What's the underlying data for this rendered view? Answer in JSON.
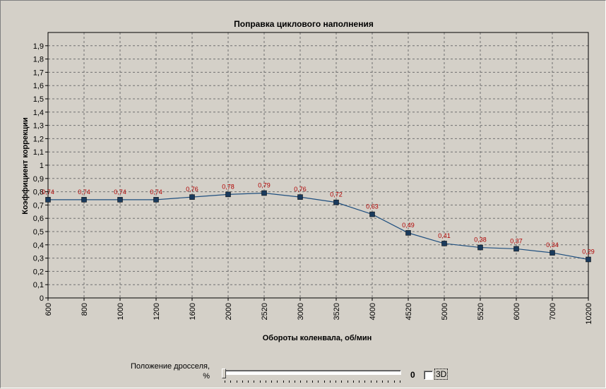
{
  "chart_data": {
    "type": "line",
    "title": "Поправка циклового наполнения",
    "xlabel": "Обороты коленвала, об/мин",
    "ylabel": "Коэффициент коррекции",
    "categories": [
      "600",
      "800",
      "1000",
      "1200",
      "1600",
      "2000",
      "2520",
      "3000",
      "3520",
      "4000",
      "4520",
      "5000",
      "5520",
      "6000",
      "7000",
      "10200"
    ],
    "values": [
      0.74,
      0.74,
      0.74,
      0.74,
      0.76,
      0.78,
      0.79,
      0.76,
      0.72,
      0.63,
      0.49,
      0.41,
      0.38,
      0.37,
      0.34,
      0.29
    ],
    "value_labels": [
      "0,74",
      "0,74",
      "0,74",
      "0,74",
      "0,76",
      "0,78",
      "0,79",
      "0,76",
      "0,72",
      "0,63",
      "0,49",
      "0,41",
      "0,38",
      "0,37",
      "0,34",
      "0,29"
    ],
    "ylim": [
      0,
      2
    ],
    "yticks": [
      "0",
      "0,1",
      "0,2",
      "0,3",
      "0,4",
      "0,5",
      "0,6",
      "0,7",
      "0,8",
      "0,9",
      "1",
      "1,1",
      "1,2",
      "1,3",
      "1,4",
      "1,5",
      "1,6",
      "1,7",
      "1,8",
      "1,9"
    ],
    "grid": true,
    "colors": {
      "line": "#1f4f7f",
      "marker": "#1a3a5c",
      "labels": "#b00000"
    }
  },
  "controls": {
    "throttle_label_line1": "Положение дросселя,",
    "throttle_label_line2": "%",
    "throttle_value": "0",
    "checkbox_3d_label": "3D",
    "checkbox_3d_checked": false,
    "slider_position": 0
  }
}
